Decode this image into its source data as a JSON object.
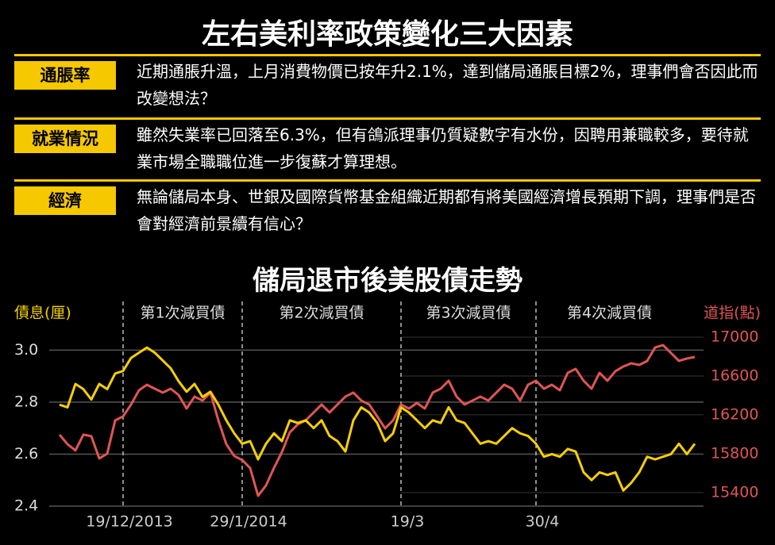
{
  "header": {
    "title": "左右美利率政策變化三大因素"
  },
  "factors": [
    {
      "label": "通脹率",
      "text": "近期通脹升溫，上月消費物價已按年升2.1%，達到儲局通脹目標2%，理事們會否因此而改變想法？"
    },
    {
      "label": "就業情況",
      "text": "雖然失業率已回落至6.3%，但有鴿派理事仍質疑數字有水份，因聘用兼職較多，要待就業市場全職職位進一步復蘇才算理想。"
    },
    {
      "label": "經濟",
      "text": "無論儲局本身、世銀及國際貨幣基金組織近期都有將美國經濟增長預期下調，理事們是否會對經濟前景續有信心？"
    }
  ],
  "chart_data": {
    "type": "line",
    "title": "儲局退市後美股債走勢",
    "ylabel": "債息(厘)",
    "y2label": "道指(點)",
    "annotations": [
      "第1次減買債",
      "第2次減買債",
      "第3次減買債",
      "第4次減買債"
    ],
    "categories": [
      null,
      null,
      null,
      null,
      null,
      null,
      null,
      null,
      "19/12/2013",
      null,
      null,
      null,
      null,
      null,
      null,
      null,
      null,
      null,
      null,
      null,
      null,
      null,
      null,
      "29/1/2014",
      null,
      null,
      null,
      null,
      null,
      null,
      null,
      null,
      null,
      null,
      null,
      null,
      null,
      null,
      null,
      null,
      null,
      null,
      null,
      "19/3",
      null,
      null,
      null,
      null,
      null,
      null,
      null,
      null,
      null,
      null,
      null,
      null,
      null,
      null,
      null,
      null,
      "30/4",
      null,
      null,
      null,
      null,
      null,
      null,
      null,
      null,
      null,
      null,
      null,
      null,
      null,
      null,
      null,
      null,
      null,
      null,
      null,
      null
    ],
    "series": [
      {
        "name": "債息",
        "color": "#f5d000",
        "values": [
          2.79,
          2.78,
          2.87,
          2.85,
          2.81,
          2.87,
          2.85,
          2.91,
          2.92,
          2.97,
          2.99,
          3.01,
          2.99,
          2.96,
          2.93,
          2.88,
          2.84,
          2.87,
          2.82,
          2.84,
          2.79,
          2.73,
          2.68,
          2.64,
          2.65,
          2.58,
          2.64,
          2.68,
          2.65,
          2.73,
          2.72,
          2.73,
          2.7,
          2.73,
          2.67,
          2.65,
          2.61,
          2.73,
          2.78,
          2.76,
          2.72,
          2.65,
          2.68,
          2.78,
          2.76,
          2.73,
          2.7,
          2.73,
          2.72,
          2.78,
          2.73,
          2.72,
          2.68,
          2.64,
          2.65,
          2.64,
          2.67,
          2.7,
          2.68,
          2.67,
          2.64,
          2.59,
          2.6,
          2.59,
          2.62,
          2.61,
          2.53,
          2.5,
          2.53,
          2.52,
          2.53,
          2.46,
          2.49,
          2.53,
          2.59,
          2.58,
          2.59,
          2.6,
          2.64,
          2.6,
          2.64
        ]
      },
      {
        "name": "道指",
        "color": "#e05555",
        "axis": "y2",
        "values": [
          15996,
          15898,
          15833,
          15996,
          15980,
          15751,
          15800,
          16143,
          16184,
          16306,
          16453,
          16510,
          16469,
          16429,
          16469,
          16404,
          16265,
          16388,
          16347,
          16429,
          16143,
          15898,
          15776,
          15735,
          15653,
          15367,
          15473,
          15653,
          15816,
          16020,
          16102,
          16143,
          16224,
          16306,
          16224,
          16306,
          16388,
          16429,
          16347,
          16306,
          16184,
          16061,
          16143,
          16306,
          16265,
          16322,
          16265,
          16429,
          16469,
          16551,
          16388,
          16306,
          16347,
          16388,
          16347,
          16429,
          16510,
          16469,
          16347,
          16510,
          16551,
          16469,
          16510,
          16453,
          16633,
          16673,
          16551,
          16469,
          16633,
          16551,
          16649,
          16698,
          16731,
          16714,
          16755,
          16894,
          16918,
          16837,
          16755,
          16780,
          16796
        ]
      }
    ],
    "ylim": [
      2.4,
      3.05
    ],
    "yticks": [
      2.4,
      2.6,
      2.8,
      {
        "value": 3,
        "label": "3.0"
      }
    ],
    "y2lim": [
      15260,
      17000
    ],
    "y2ticks": [
      15400,
      15800,
      16200,
      16600,
      17000
    ],
    "grid": true
  }
}
